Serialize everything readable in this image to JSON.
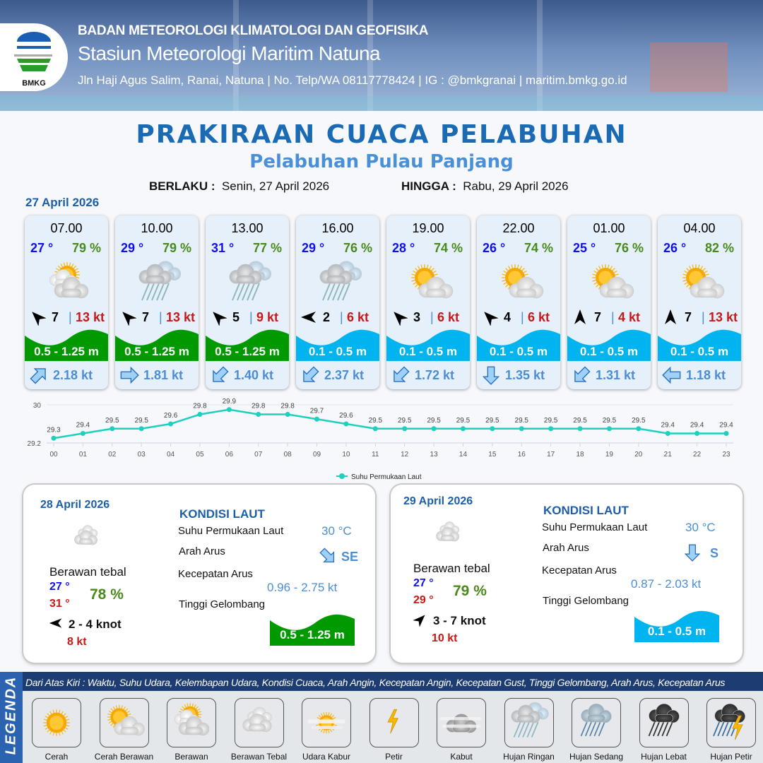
{
  "header": {
    "org": "BADAN METEOROLOGI KLIMATOLOGI DAN GEOFISIKA",
    "station": "Stasiun Meteorologi Maritim Natuna",
    "contact": "Jln Haji Agus Salim, Ranai, Natuna  | No. Telp/WA 08117778424 | IG : @bmkgranai | maritim.bmkg.go.id",
    "logo_text": "BMKG"
  },
  "title": "PRAKIRAAN CUACA PELABUHAN",
  "subtitle": "Pelabuhan Pulau Panjang",
  "validity": {
    "from_label": "BERLAKU :",
    "from": "Senin, 27 April 2026",
    "to_label": "HINGGA :",
    "to": "Rabu, 29 April 2026"
  },
  "today": {
    "date": "27 April 2026",
    "cards": [
      {
        "time": "07.00",
        "temp": "27 °",
        "hum": "79 %",
        "icon": "berawan",
        "wind_dir": "NW",
        "wind": "7",
        "gust": "13 kt",
        "wave": "0.5 - 1.25 m",
        "wave_color": "#009a00",
        "cur_dir": "NE",
        "cur": "2.18 kt"
      },
      {
        "time": "10.00",
        "temp": "29 °",
        "hum": "79 %",
        "icon": "hujan-ringan",
        "wind_dir": "NW",
        "wind": "7",
        "gust": "13 kt",
        "wave": "0.5 - 1.25 m",
        "wave_color": "#009a00",
        "cur_dir": "E",
        "cur": "1.81 kt"
      },
      {
        "time": "13.00",
        "temp": "31 °",
        "hum": "77 %",
        "icon": "hujan-ringan",
        "wind_dir": "NW",
        "wind": "5",
        "gust": "9 kt",
        "wave": "0.5 - 1.25 m",
        "wave_color": "#009a00",
        "cur_dir": "SW",
        "cur": "1.40 kt"
      },
      {
        "time": "16.00",
        "temp": "29 °",
        "hum": "76 %",
        "icon": "hujan-ringan",
        "wind_dir": "W",
        "wind": "2",
        "gust": "6 kt",
        "wave": "0.1 - 0.5 m",
        "wave_color": "#00b4f0",
        "cur_dir": "SW",
        "cur": "2.37 kt"
      },
      {
        "time": "19.00",
        "temp": "28 °",
        "hum": "74 %",
        "icon": "cerah-berawan",
        "wind_dir": "NW",
        "wind": "3",
        "gust": "6 kt",
        "wave": "0.1 - 0.5 m",
        "wave_color": "#00b4f0",
        "cur_dir": "SW",
        "cur": "1.72 kt"
      },
      {
        "time": "22.00",
        "temp": "26 °",
        "hum": "74 %",
        "icon": "cerah-berawan",
        "wind_dir": "NW",
        "wind": "4",
        "gust": "6 kt",
        "wave": "0.1 - 0.5 m",
        "wave_color": "#00b4f0",
        "cur_dir": "S",
        "cur": "1.35 kt"
      },
      {
        "time": "01.00",
        "temp": "25 °",
        "hum": "76 %",
        "icon": "cerah-berawan",
        "wind_dir": "N",
        "wind": "7",
        "gust": "4 kt",
        "wave": "0.1 - 0.5 m",
        "wave_color": "#00b4f0",
        "cur_dir": "SW",
        "cur": "1.31 kt"
      },
      {
        "time": "04.00",
        "temp": "26 °",
        "hum": "82 %",
        "icon": "cerah-berawan",
        "wind_dir": "N",
        "wind": "7",
        "gust": "13 kt",
        "wave": "0.1 - 0.5 m",
        "wave_color": "#00b4f0",
        "cur_dir": "W",
        "cur": "1.18 kt"
      }
    ]
  },
  "chart_data": {
    "type": "line",
    "x": [
      "00",
      "01",
      "02",
      "03",
      "04",
      "05",
      "06",
      "07",
      "08",
      "09",
      "10",
      "11",
      "12",
      "13",
      "14",
      "15",
      "16",
      "17",
      "18",
      "19",
      "20",
      "21",
      "22",
      "23"
    ],
    "series": [
      {
        "name": "Suhu Permukaan Laut",
        "values": [
          29.3,
          29.4,
          29.5,
          29.5,
          29.6,
          29.8,
          29.9,
          29.8,
          29.8,
          29.7,
          29.6,
          29.5,
          29.5,
          29.5,
          29.5,
          29.5,
          29.5,
          29.5,
          29.5,
          29.5,
          29.5,
          29.4,
          29.4,
          29.4
        ],
        "color": "#1fcfc0"
      }
    ],
    "ylim": [
      29.2,
      30
    ],
    "yticks": [
      "30",
      "29.2"
    ],
    "legend": "bottom",
    "grid": true
  },
  "days": [
    {
      "date": "28 April 2026",
      "icon": "berawan-tebal",
      "cond": "Berawan tebal",
      "tmin": "27 °",
      "tmax": "31 °",
      "hum": "78 %",
      "wind_dir": "W",
      "wind": "2  - 4 knot",
      "gust": "8 kt",
      "kondisi": "KONDISI LAUT",
      "sst_label": "Suhu Permukaan Laut",
      "sst": "30 °C",
      "arus_label": "Arah Arus",
      "arus_dir": "SE",
      "kec_label": "Kecepatan Arus",
      "kec": "0.96  - 2.75 kt",
      "gel_label": "Tinggi Gelombang",
      "gel": "0.5 - 1.25 m",
      "gel_color": "#009a00"
    },
    {
      "date": "29 April 2026",
      "icon": "berawan-tebal",
      "cond": "Berawan tebal",
      "tmin": "27 °",
      "tmax": "29 °",
      "hum": "79 %",
      "wind_dir": "NE",
      "wind": "3  - 7 knot",
      "gust": "10 kt",
      "kondisi": "KONDISI LAUT",
      "sst_label": "Suhu Permukaan Laut",
      "sst": "30 °C",
      "arus_label": "Arah Arus",
      "arus_dir": "S",
      "kec_label": "Kecepatan Arus",
      "kec": "0.87  - 2.03 kt",
      "gel_label": "Tinggi Gelombang",
      "gel": "0.1 - 0.5 m",
      "gel_color": "#00b4f0"
    }
  ],
  "legend": {
    "title": "LEGENDA",
    "desc": "Dari Atas Kiri : Waktu, Suhu Udara, Kelembapan Udara, Kondisi Cuaca, Arah Angin, Kecepatan Angin, Kecepatan Gust, Tinggi Gelombang, Arah Arus, Kecepatan Arus",
    "items": [
      {
        "label": "Cerah",
        "icon": "cerah"
      },
      {
        "label": "Cerah Berawan",
        "icon": "cerah-berawan"
      },
      {
        "label": "Berawan",
        "icon": "berawan"
      },
      {
        "label": "Berawan Tebal",
        "icon": "berawan-tebal"
      },
      {
        "label": "Udara Kabur",
        "icon": "udara-kabur"
      },
      {
        "label": "Petir",
        "icon": "petir"
      },
      {
        "label": "Kabut",
        "icon": "kabut"
      },
      {
        "label": "Hujan Ringan",
        "icon": "hujan-ringan"
      },
      {
        "label": "Hujan Sedang",
        "icon": "hujan-sedang"
      },
      {
        "label": "Hujan Lebat",
        "icon": "hujan-lebat"
      },
      {
        "label": "Hujan Petir",
        "icon": "hujan-petir"
      }
    ]
  }
}
